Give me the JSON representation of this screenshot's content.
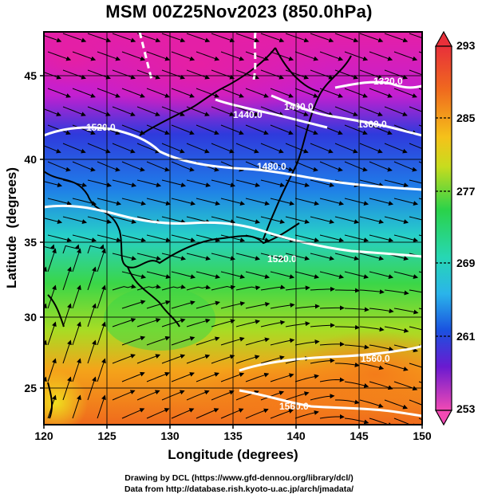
{
  "title": "MSM 00Z25Nov2023 (850.0hPa)",
  "axes": {
    "xlabel": "Longitude (degrees)",
    "ylabel": "Latitude  (degrees)",
    "x_ticks": [
      "120",
      "125",
      "130",
      "135",
      "140",
      "145",
      "150"
    ],
    "y_ticks": [
      "25",
      "30",
      "35",
      "40",
      "45"
    ]
  },
  "colorbar": {
    "labels": [
      "293",
      "285",
      "277",
      "269",
      "261",
      "253"
    ],
    "colors": [
      "#e8303a",
      "#f06a1e",
      "#f5a41a",
      "#e6dc1e",
      "#7fdc2a",
      "#2ad24a",
      "#27d7b4",
      "#2ab4ea",
      "#1a6ae6",
      "#2a2acc",
      "#8a1ad2",
      "#e01aa6",
      "#f24ab4"
    ]
  },
  "contours": {
    "color": "#ffffff",
    "labels": [
      "1320.0",
      "1360.0",
      "1400.0",
      "1440.0",
      "1480.0",
      "1520.0",
      "1520.0",
      "1560.0",
      "1560.0"
    ]
  },
  "footer": {
    "line1": "Drawing by DCL (https://www.gfd-dennou.org/library/dcl/)",
    "line2": "Data from http://database.rish.kyoto-u.ac.jp/arch/jmadata/"
  },
  "chart_data": {
    "type": "heatmap",
    "title": "MSM 00Z25Nov2023 (850.0hPa)",
    "xlabel": "Longitude (degrees)",
    "ylabel": "Latitude  (degrees)",
    "xlim": [
      120,
      150
    ],
    "ylim": [
      22.5,
      47.5
    ],
    "colorbar_range": [
      253,
      293
    ],
    "colorbar_ticks": [
      293,
      285,
      277,
      269,
      261,
      253
    ],
    "contour_levels": [
      1320,
      1360,
      1400,
      1440,
      1480,
      1520,
      1560
    ],
    "grid": true,
    "overlay": "streamlines"
  }
}
